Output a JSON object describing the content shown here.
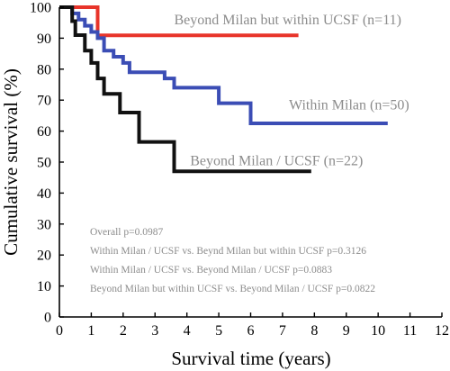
{
  "chart_data": {
    "type": "line",
    "step": true,
    "xlabel": "Survival time (years)",
    "ylabel": "Cumulative survival (%)",
    "xlim": [
      0,
      12
    ],
    "ylim": [
      0,
      100
    ],
    "xticks": [
      0,
      1,
      2,
      3,
      4,
      5,
      6,
      7,
      8,
      9,
      10,
      11,
      12
    ],
    "yticks": [
      0,
      10,
      20,
      30,
      40,
      50,
      60,
      70,
      80,
      90,
      100
    ],
    "grid": false,
    "series": [
      {
        "name": "Beyond Milan but within UCSF (n=11)",
        "color": "#e8342a",
        "points": [
          [
            0,
            100
          ],
          [
            1.2,
            100
          ],
          [
            1.2,
            90.9
          ],
          [
            7.5,
            90.9
          ]
        ]
      },
      {
        "name": "Within Milan (n=50)",
        "color": "#3b4db5",
        "points": [
          [
            0,
            100
          ],
          [
            0.4,
            100
          ],
          [
            0.4,
            98
          ],
          [
            0.6,
            98
          ],
          [
            0.6,
            96
          ],
          [
            0.8,
            96
          ],
          [
            0.8,
            94
          ],
          [
            1.0,
            94
          ],
          [
            1.0,
            92
          ],
          [
            1.2,
            92
          ],
          [
            1.2,
            90
          ],
          [
            1.4,
            90
          ],
          [
            1.4,
            86
          ],
          [
            1.7,
            86
          ],
          [
            1.7,
            84
          ],
          [
            2.0,
            84
          ],
          [
            2.0,
            82
          ],
          [
            2.2,
            82
          ],
          [
            2.2,
            79
          ],
          [
            3.3,
            79
          ],
          [
            3.3,
            77
          ],
          [
            3.6,
            77
          ],
          [
            3.6,
            74
          ],
          [
            5.0,
            74
          ],
          [
            5.0,
            69
          ],
          [
            6.0,
            69
          ],
          [
            6.0,
            62.5
          ],
          [
            10.3,
            62.5
          ]
        ]
      },
      {
        "name": "Beyond Milan / UCSF (n=22)",
        "color": "#111111",
        "points": [
          [
            0,
            100
          ],
          [
            0.4,
            100
          ],
          [
            0.4,
            95.5
          ],
          [
            0.5,
            95.5
          ],
          [
            0.5,
            91
          ],
          [
            0.8,
            91
          ],
          [
            0.8,
            86
          ],
          [
            1.0,
            86
          ],
          [
            1.0,
            82
          ],
          [
            1.2,
            82
          ],
          [
            1.2,
            77
          ],
          [
            1.4,
            77
          ],
          [
            1.4,
            72
          ],
          [
            1.9,
            72
          ],
          [
            1.9,
            66
          ],
          [
            2.5,
            66
          ],
          [
            2.5,
            56.5
          ],
          [
            3.6,
            56.5
          ],
          [
            3.6,
            47
          ],
          [
            7.9,
            47
          ]
        ]
      }
    ],
    "series_labels": [
      {
        "text": "Beyond Milan but within UCSF (n=11)",
        "x": 3.6,
        "y": 94.5
      },
      {
        "text": "Within Milan (n=50)",
        "x": 7.2,
        "y": 67
      },
      {
        "text": "Beyond Milan / UCSF (n=22)",
        "x": 4.1,
        "y": 49
      }
    ],
    "annotations": [
      "Overall p=0.0987",
      "Within Milan / UCSF vs. Beynd Milan but within UCSF  p=0.3126",
      "Within Milan / UCSF vs. Beyond Milan / UCSF p=0.0883",
      "Beyond Milan but within UCSF vs. Beyond Milan / UCSF p=0.0822"
    ]
  }
}
